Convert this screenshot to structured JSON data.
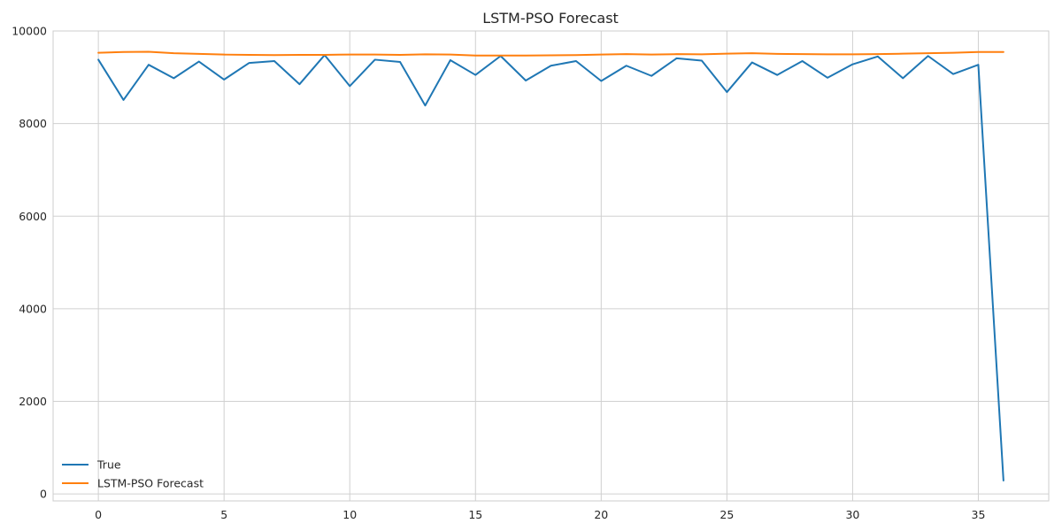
{
  "chart_data": {
    "type": "line",
    "title": "LSTM-PSO Forecast",
    "xlabel": "",
    "ylabel": "",
    "xlim": [
      -1.8,
      37.8
    ],
    "ylim": [
      -150,
      10000
    ],
    "xticks": [
      0,
      5,
      10,
      15,
      20,
      25,
      30,
      35
    ],
    "yticks": [
      0,
      2000,
      4000,
      6000,
      8000,
      10000
    ],
    "grid": true,
    "legend": "bottom-left",
    "x": [
      0,
      1,
      2,
      3,
      4,
      5,
      6,
      7,
      8,
      9,
      10,
      11,
      12,
      13,
      14,
      15,
      16,
      17,
      18,
      19,
      20,
      21,
      22,
      23,
      24,
      25,
      26,
      27,
      28,
      29,
      30,
      31,
      32,
      33,
      34,
      35,
      36
    ],
    "series": [
      {
        "name": "True",
        "color": "#1f77b4",
        "values": [
          9380,
          8510,
          9270,
          8980,
          9340,
          8950,
          9310,
          9350,
          8850,
          9480,
          8810,
          9380,
          9330,
          8390,
          9370,
          9050,
          9460,
          8930,
          9250,
          9350,
          8920,
          9250,
          9030,
          9410,
          9360,
          8680,
          9320,
          9050,
          9350,
          8990,
          9280,
          9450,
          8980,
          9460,
          9070,
          9270,
          290
        ]
      },
      {
        "name": "LSTM-PSO Forecast",
        "color": "#ff7f0e",
        "values": [
          9530,
          9545,
          9550,
          9520,
          9505,
          9490,
          9485,
          9480,
          9485,
          9485,
          9490,
          9490,
          9485,
          9495,
          9490,
          9470,
          9470,
          9470,
          9475,
          9480,
          9490,
          9500,
          9490,
          9500,
          9495,
          9510,
          9520,
          9505,
          9500,
          9495,
          9495,
          9500,
          9510,
          9520,
          9530,
          9545,
          9545
        ]
      }
    ]
  }
}
